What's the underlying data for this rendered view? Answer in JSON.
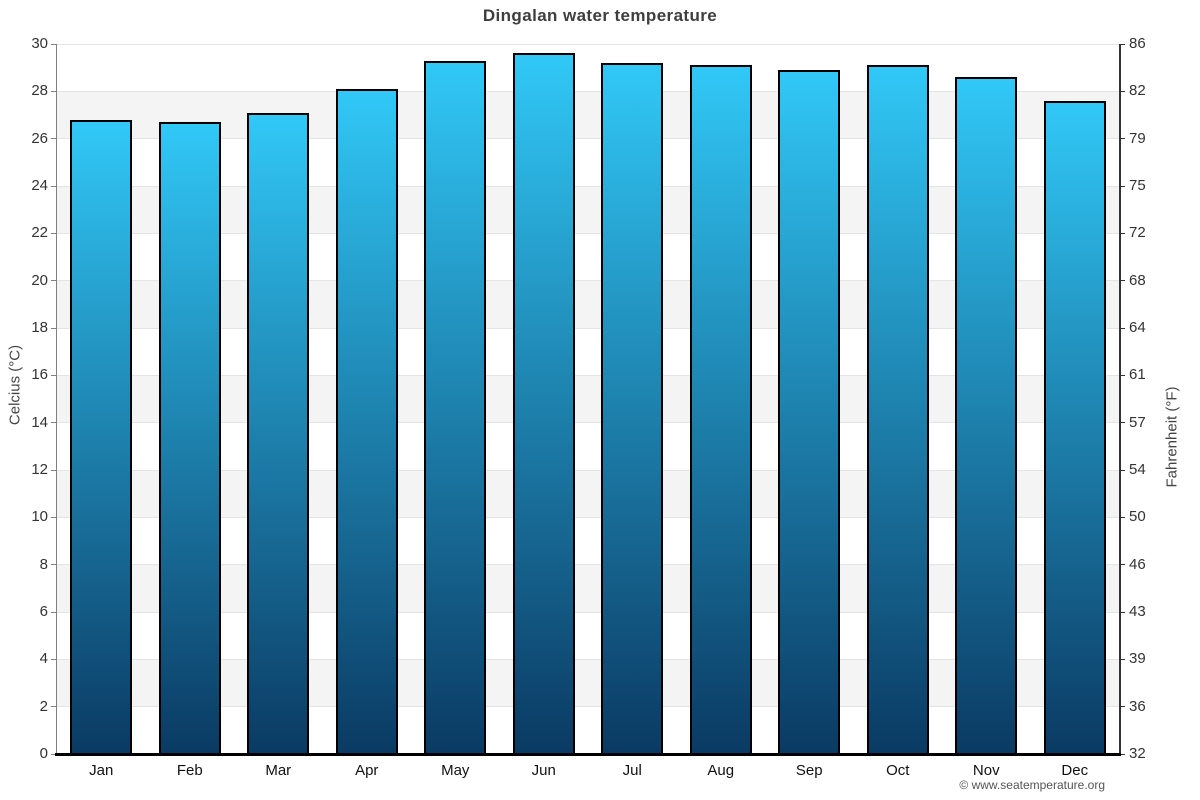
{
  "title": "Dingalan water temperature",
  "footer": "© www.seatemperature.org",
  "chart_data": {
    "type": "bar",
    "title": "Dingalan water temperature",
    "categories": [
      "Jan",
      "Feb",
      "Mar",
      "Apr",
      "May",
      "Jun",
      "Jul",
      "Aug",
      "Sep",
      "Oct",
      "Nov",
      "Dec"
    ],
    "values": [
      26.8,
      26.7,
      27.1,
      28.1,
      29.3,
      29.6,
      29.2,
      29.1,
      28.9,
      29.1,
      28.6,
      27.6
    ],
    "ylabel_left": "Celcius (°C)",
    "ylabel_right": "Fahrenheit (°F)",
    "ylim": [
      0,
      30
    ],
    "ytick_step_celsius": 2,
    "yticks_celsius": [
      30,
      28,
      26,
      24,
      22,
      20,
      18,
      16,
      14,
      12,
      10,
      8,
      6,
      4,
      2,
      0
    ],
    "yticks_fahrenheit": [
      86,
      82,
      79,
      75,
      72,
      68,
      64,
      61,
      57,
      54,
      50,
      46,
      43,
      39,
      36,
      32
    ],
    "grid": "horizontal alternating bands, gridline every 2°C",
    "legend": "none",
    "colors": {
      "bar_gradient_top": "#31c8f7",
      "bar_gradient_bottom": "#0a3a63",
      "bar_border": "#000000",
      "band_alt": "#f4f4f4",
      "band_base": "#ffffff",
      "gridline": "#e4e4e4",
      "axis_left": "#808080",
      "axis_right": "#333333",
      "baseline": "#000000",
      "title_color": "#3e3e3e",
      "label_color": "#333333",
      "footer_color": "#555555"
    }
  }
}
